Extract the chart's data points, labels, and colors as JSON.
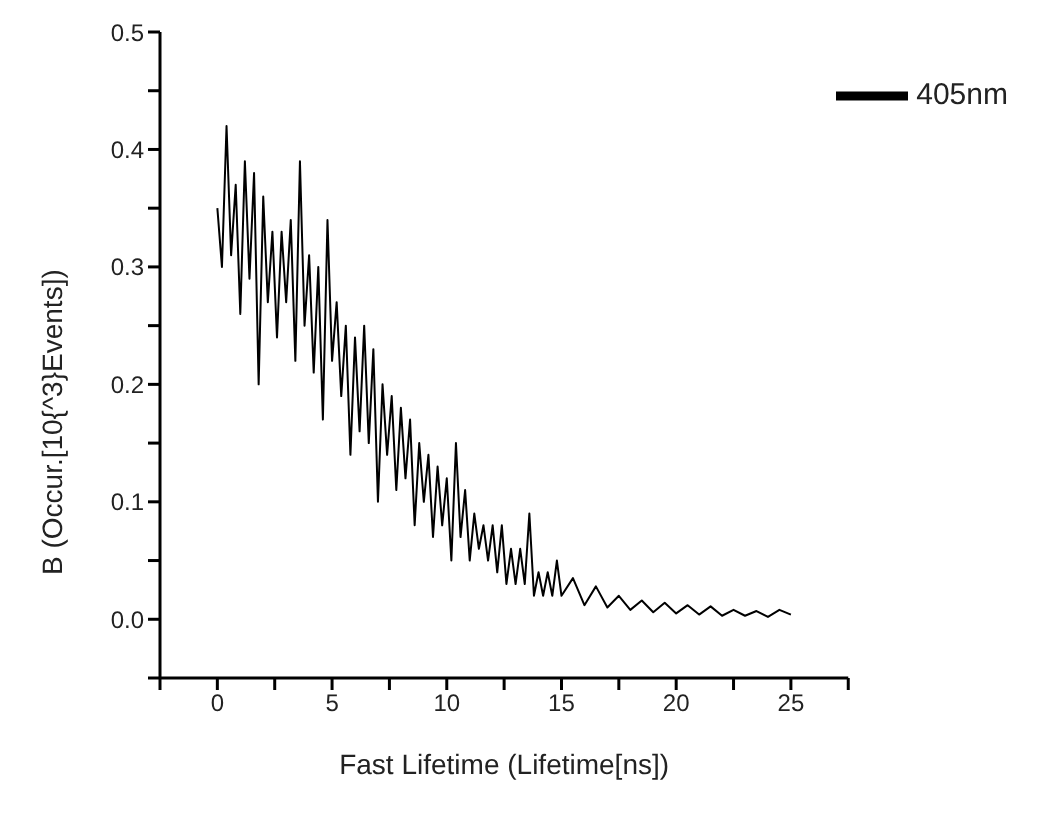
{
  "chart_data": {
    "type": "line",
    "xlabel": "Fast Lifetime (Lifetime[ns])",
    "ylabel": "B (Occur.[10{^3}Events])",
    "xlim": [
      -2.5,
      27.5
    ],
    "ylim": [
      -0.05,
      0.5
    ],
    "xticks": [
      {
        "value": -2.5,
        "label": null
      },
      0,
      {
        "value": 2.5,
        "label": null
      },
      5,
      {
        "value": 7.5,
        "label": null
      },
      10,
      {
        "value": 12.5,
        "label": null
      },
      15,
      {
        "value": 17.5,
        "label": null
      },
      20,
      {
        "value": 22.5,
        "label": null
      },
      25,
      {
        "value": 27.5,
        "label": null
      }
    ],
    "yticks": [
      {
        "value": -0.05,
        "label": null
      },
      {
        "value": 0,
        "label": "0.0"
      },
      {
        "value": 0.05,
        "label": null
      },
      0.1,
      {
        "value": 0.15,
        "label": null
      },
      0.2,
      {
        "value": 0.25,
        "label": null
      },
      0.3,
      {
        "value": 0.35,
        "label": null
      },
      0.4,
      {
        "value": 0.45,
        "label": null
      },
      0.5
    ],
    "legend": "top right",
    "marker": "none",
    "line_style": "solid",
    "grid": false,
    "x": [
      0,
      0.2,
      0.4,
      0.6,
      0.8,
      1.0,
      1.2,
      1.4,
      1.6,
      1.8,
      2.0,
      2.2,
      2.4,
      2.6,
      2.8,
      3.0,
      3.2,
      3.4,
      3.6,
      3.8,
      4.0,
      4.2,
      4.4,
      4.6,
      4.8,
      5.0,
      5.2,
      5.4,
      5.6,
      5.8,
      6.0,
      6.2,
      6.4,
      6.6,
      6.8,
      7.0,
      7.2,
      7.4,
      7.6,
      7.8,
      8.0,
      8.2,
      8.4,
      8.6,
      8.8,
      9.0,
      9.2,
      9.4,
      9.6,
      9.8,
      10.0,
      10.2,
      10.4,
      10.6,
      10.8,
      11.0,
      11.2,
      11.4,
      11.6,
      11.8,
      12.0,
      12.2,
      12.4,
      12.6,
      12.8,
      13.0,
      13.2,
      13.4,
      13.6,
      13.8,
      14.0,
      14.2,
      14.4,
      14.6,
      14.8,
      15.0,
      15.5,
      16,
      16.5,
      17,
      17.5,
      18,
      18.5,
      19,
      19.5,
      20,
      20.5,
      21,
      21.5,
      22,
      22.5,
      23,
      23.5,
      24,
      24.5,
      25
    ],
    "series": [
      {
        "name": "405nm",
        "color": "#000000",
        "values": [
          0.35,
          0.3,
          0.42,
          0.31,
          0.37,
          0.26,
          0.39,
          0.29,
          0.38,
          0.2,
          0.36,
          0.27,
          0.33,
          0.24,
          0.33,
          0.27,
          0.34,
          0.22,
          0.39,
          0.25,
          0.31,
          0.21,
          0.3,
          0.17,
          0.34,
          0.22,
          0.27,
          0.19,
          0.25,
          0.14,
          0.24,
          0.16,
          0.25,
          0.15,
          0.23,
          0.1,
          0.2,
          0.14,
          0.19,
          0.11,
          0.18,
          0.12,
          0.17,
          0.08,
          0.15,
          0.1,
          0.14,
          0.07,
          0.13,
          0.08,
          0.12,
          0.05,
          0.15,
          0.07,
          0.11,
          0.05,
          0.09,
          0.06,
          0.08,
          0.05,
          0.08,
          0.04,
          0.08,
          0.03,
          0.06,
          0.03,
          0.06,
          0.03,
          0.09,
          0.02,
          0.04,
          0.02,
          0.04,
          0.02,
          0.05,
          0.02,
          0.035,
          0.012,
          0.028,
          0.01,
          0.02,
          0.008,
          0.016,
          0.006,
          0.014,
          0.005,
          0.012,
          0.004,
          0.011,
          0.003,
          0.008,
          0.003,
          0.007,
          0.002,
          0.008,
          0.004
        ]
      }
    ]
  }
}
